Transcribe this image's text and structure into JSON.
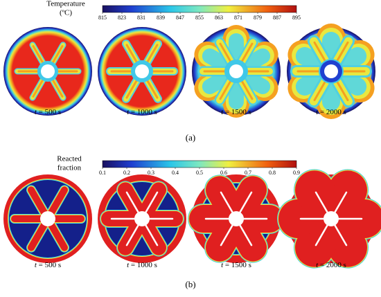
{
  "panels": [
    {
      "label": "(a)",
      "colorbar": {
        "title": [
          "Temperature",
          "(ºC)"
        ],
        "lim": [
          815,
          895
        ],
        "ticks": [
          815,
          823,
          831,
          839,
          847,
          855,
          863,
          871,
          879,
          887,
          895
        ]
      },
      "time_labels": [
        {
          "var": "t",
          "text": "= 500 s"
        },
        {
          "var": "t",
          "text": "= 1000 s"
        },
        {
          "var": "t",
          "text": "= 1500 s"
        },
        {
          "var": "t",
          "text": "= 2000 s"
        }
      ]
    },
    {
      "label": "(b)",
      "colorbar": {
        "title": [
          "Reacted",
          "fraction"
        ],
        "lim": [
          0.1,
          0.9
        ],
        "ticks": [
          0.1,
          0.2,
          0.3,
          0.4,
          0.5,
          0.6,
          0.7,
          0.8,
          0.9
        ]
      },
      "time_labels": [
        {
          "var": "t",
          "text": "= 500 s"
        },
        {
          "var": "t",
          "text": "= 1000 s"
        },
        {
          "var": "t",
          "text": "= 1500 s"
        },
        {
          "var": "t",
          "text": "= 2000 s"
        }
      ]
    }
  ]
}
